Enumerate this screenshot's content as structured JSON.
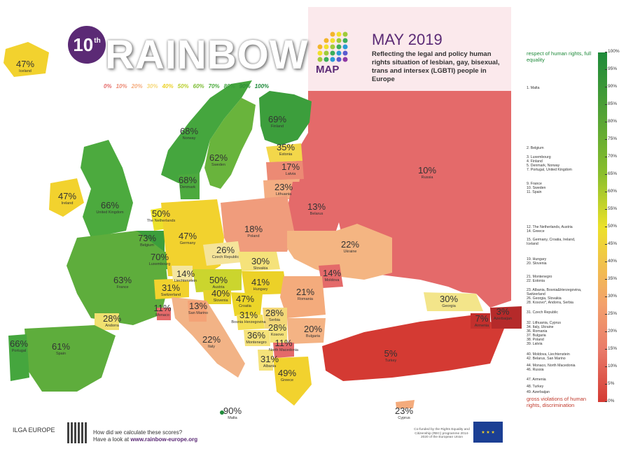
{
  "header": {
    "edition": "10",
    "edition_suffix": "th",
    "brand": "RAINBOW",
    "brand_suffix": "MAP",
    "date": "MAY 2019",
    "subtitle": "Reflecting the legal and policy human rights situation of lesbian, gay, bisexual, trans and intersex (LGBTI) people in Europe"
  },
  "mini_scale": [
    "0%",
    "10%",
    "20%",
    "30%",
    "40%",
    "50%",
    "60%",
    "70%",
    "80%",
    "90%",
    "100%"
  ],
  "countries": [
    {
      "name": "Iceland",
      "value": "47%"
    },
    {
      "name": "Norway",
      "value": "68%"
    },
    {
      "name": "Sweden",
      "value": "62%"
    },
    {
      "name": "Finland",
      "value": "69%"
    },
    {
      "name": "Estonia",
      "value": "35%"
    },
    {
      "name": "Latvia",
      "value": "17%"
    },
    {
      "name": "Lithuania",
      "value": "23%"
    },
    {
      "name": "Russia",
      "value": "10%"
    },
    {
      "name": "Belarus",
      "value": "13%"
    },
    {
      "name": "Denmark",
      "value": "68%"
    },
    {
      "name": "Ireland",
      "value": "47%"
    },
    {
      "name": "United Kingdom",
      "value": "66%"
    },
    {
      "name": "The Netherlands",
      "value": "50%"
    },
    {
      "name": "Germany",
      "value": "47%"
    },
    {
      "name": "Poland",
      "value": "18%"
    },
    {
      "name": "Ukraine",
      "value": "22%"
    },
    {
      "name": "Belgium",
      "value": "73%"
    },
    {
      "name": "Luxembourg",
      "value": "70%"
    },
    {
      "name": "Czech Republic",
      "value": "26%"
    },
    {
      "name": "Slovakia",
      "value": "30%"
    },
    {
      "name": "Moldova",
      "value": "14%"
    },
    {
      "name": "France",
      "value": "63%"
    },
    {
      "name": "Liechtenstein",
      "value": "14%"
    },
    {
      "name": "Austria",
      "value": "50%"
    },
    {
      "name": "Hungary",
      "value": "41%"
    },
    {
      "name": "Romania",
      "value": "21%"
    },
    {
      "name": "Switzerland",
      "value": "31%"
    },
    {
      "name": "Slovenia",
      "value": "40%"
    },
    {
      "name": "Croatia",
      "value": "47%"
    },
    {
      "name": "Monaco",
      "value": "11%"
    },
    {
      "name": "San Marino",
      "value": "13%"
    },
    {
      "name": "Bosnia Herzegovina",
      "value": "31%"
    },
    {
      "name": "Serbia",
      "value": "28%"
    },
    {
      "name": "Georgia",
      "value": "30%"
    },
    {
      "name": "Armenia",
      "value": "7%"
    },
    {
      "name": "Azerbaijan",
      "value": "3%"
    },
    {
      "name": "Andorra",
      "value": "28%"
    },
    {
      "name": "Italy",
      "value": "22%"
    },
    {
      "name": "Montenegro",
      "value": "36%"
    },
    {
      "name": "Kosovo",
      "value": "28%"
    },
    {
      "name": "Bulgaria",
      "value": "20%"
    },
    {
      "name": "North Macedonia",
      "value": "11%"
    },
    {
      "name": "Portugal",
      "value": "66%"
    },
    {
      "name": "Spain",
      "value": "61%"
    },
    {
      "name": "Albania",
      "value": "31%"
    },
    {
      "name": "Greece",
      "value": "49%"
    },
    {
      "name": "Turkey",
      "value": "5%"
    },
    {
      "name": "Malta",
      "value": "90%"
    },
    {
      "name": "Cyprus",
      "value": "23%"
    }
  ],
  "legend": {
    "top_label": "respect of human rights, full equality",
    "bottom_label": "gross violations of human rights, discrimination",
    "ticks": [
      "100%",
      "95%",
      "90%",
      "85%",
      "80%",
      "75%",
      "70%",
      "65%",
      "60%",
      "55%",
      "50%",
      "45%",
      "40%",
      "35%",
      "30%",
      "25%",
      "20%",
      "15%",
      "10%",
      "5%",
      "0%"
    ]
  },
  "ranking": [
    [
      "1. Malta"
    ],
    [
      "2. Belgium"
    ],
    [
      "3. Luxembourg",
      "4. Finland",
      "5. Denmark, Norway",
      "7. Portugal, United Kingdom"
    ],
    [
      "9. France",
      "10. Sweden",
      "11. Spain"
    ],
    [
      "12. The Netherlands, Austria",
      "14. Greece"
    ],
    [
      "15. Germany, Croatia, Ireland,",
      "Iceland"
    ],
    [
      "19. Hungary",
      "20. Slovenia"
    ],
    [
      "21. Montenegro",
      "22. Estonia"
    ],
    [
      "23. Albania, Bosnia&Herzegovina,",
      "Switzerland",
      "26. Georgia, Slovakia",
      "28. Kosovo*, Andorra, Serbia"
    ],
    [
      "31. Czech Republic"
    ],
    [
      "32. Lithuania, Cyprus",
      "34. Italy, Ukraine",
      "36. Romania",
      "37. Bulgaria",
      "38. Poland",
      "39. Latvia"
    ],
    [
      "40. Moldova, Liechtenstein",
      "42. Belarus, San Marino"
    ],
    [
      "44. Monaco, North Macedonia",
      "46. Russia"
    ],
    [
      "47. Armenia"
    ],
    [
      "48. Turkey"
    ],
    [
      "49. Azerbaijan"
    ]
  ],
  "footer": {
    "org": "ILGA EUROPE",
    "question": "How did we calculate these scores?",
    "link_prefix": "Have a look at",
    "link": "www.rainbow-europe.org",
    "cofund": "Co-funded by the Rights Equality and Citizenship (REC) programme 2014-2020 of the European Union"
  },
  "colors": {
    "purple": "#5b2a75",
    "green_dark": "#1e8a3a",
    "red_dark": "#c0392b"
  }
}
